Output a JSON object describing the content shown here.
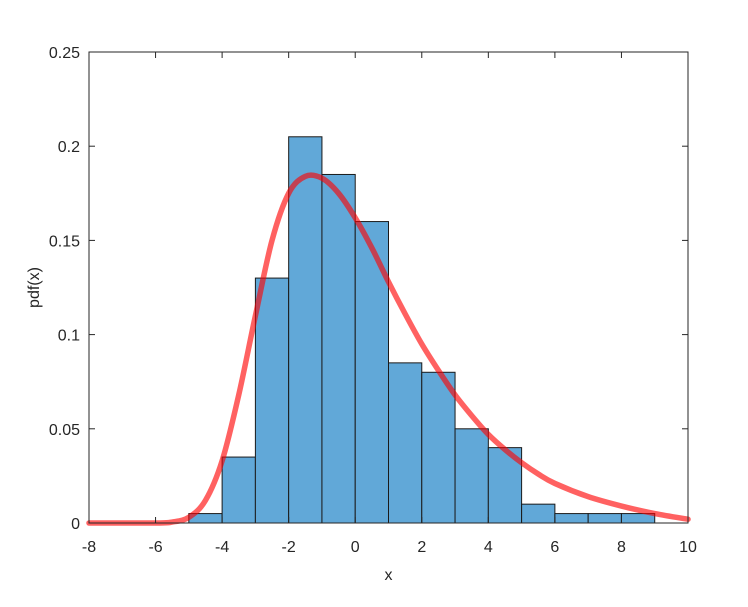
{
  "chart_data": {
    "type": "bar",
    "title": "",
    "xlabel": "x",
    "ylabel": "pdf(x)",
    "xlim": [
      -8,
      10
    ],
    "ylim": [
      0,
      0.25
    ],
    "grid": false,
    "legend": "none",
    "x_ticks": [
      -8,
      -6,
      -4,
      -2,
      0,
      2,
      4,
      6,
      8,
      10
    ],
    "x_tick_labels": [
      "-8",
      "-6",
      "-4",
      "-2",
      "0",
      "2",
      "4",
      "6",
      "8",
      "10"
    ],
    "y_ticks": [
      0,
      0.05,
      0.1,
      0.15,
      0.2,
      0.25
    ],
    "y_tick_labels": [
      "0",
      "0.05",
      "0.1",
      "0.15",
      "0.2",
      "0.25"
    ],
    "histogram": {
      "bin_edges": [
        -5,
        -4,
        -3,
        -2,
        -1,
        0,
        1,
        2,
        3,
        4,
        5,
        6,
        7,
        8,
        9
      ],
      "values": [
        0.005,
        0.035,
        0.13,
        0.205,
        0.185,
        0.16,
        0.085,
        0.08,
        0.05,
        0.04,
        0.01,
        0.005,
        0.005,
        0.005
      ],
      "color": "#61a8d8",
      "edge_color": "#1a1a1a"
    },
    "curve": {
      "type": "line",
      "color": "#ff0000",
      "x": [
        -8,
        -6,
        -5.5,
        -5,
        -4.5,
        -4,
        -3.5,
        -3,
        -2.5,
        -2,
        -1.5,
        -1,
        -0.5,
        0,
        0.5,
        1,
        1.5,
        2,
        2.5,
        3,
        3.5,
        4,
        4.5,
        5,
        5.5,
        6,
        7,
        8,
        9,
        10
      ],
      "y": [
        0,
        0,
        0.0005,
        0.003,
        0.012,
        0.033,
        0.068,
        0.11,
        0.15,
        0.175,
        0.184,
        0.183,
        0.175,
        0.162,
        0.146,
        0.128,
        0.111,
        0.095,
        0.081,
        0.068,
        0.057,
        0.047,
        0.039,
        0.032,
        0.026,
        0.021,
        0.014,
        0.009,
        0.005,
        0.002
      ]
    }
  }
}
